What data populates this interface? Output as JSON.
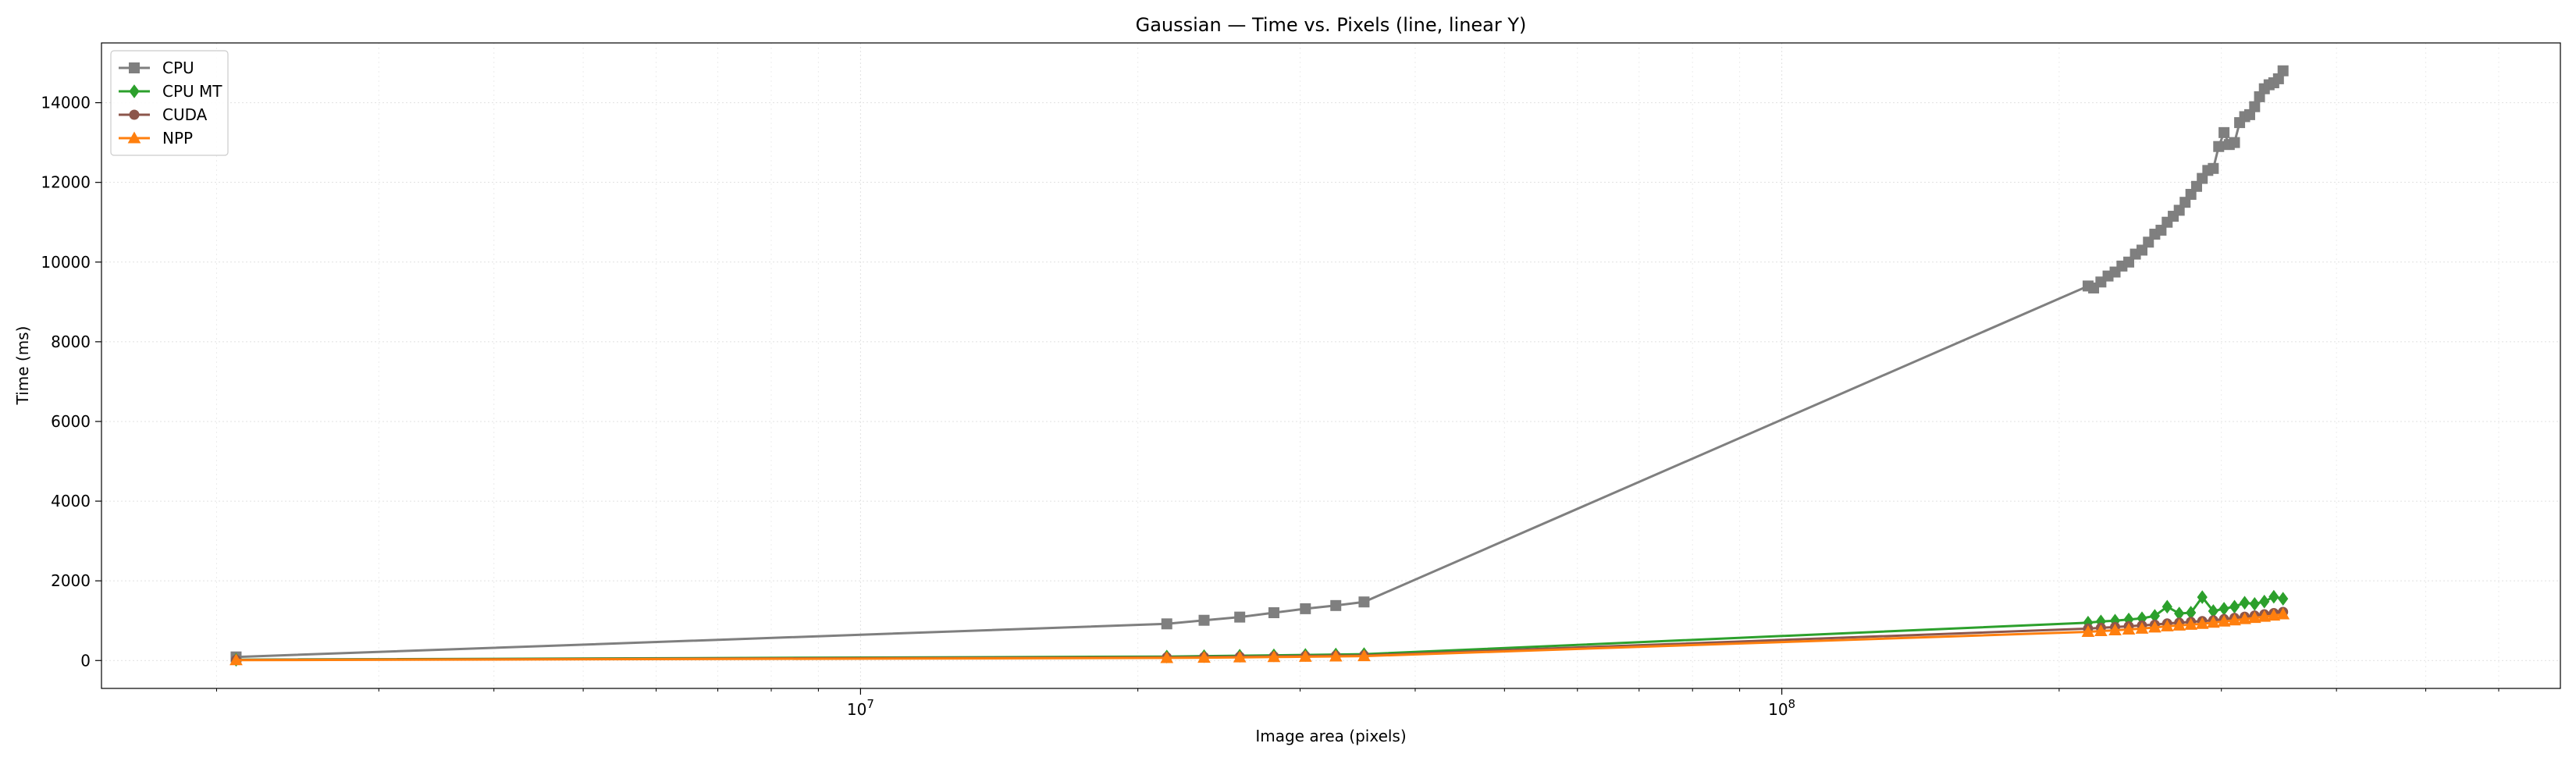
{
  "chart_data": {
    "type": "line",
    "title": "Gaussian — Time vs. Pixels (line, linear Y)",
    "xlabel": "Image area (pixels)",
    "ylabel": "Time (ms)",
    "xscale": "log",
    "xlim": [
      1500000,
      700000000
    ],
    "ylim": [
      -700,
      15500
    ],
    "xticks": [
      10000000,
      100000000
    ],
    "xtick_labels": [
      "10^7",
      "10^8"
    ],
    "yticks": [
      0,
      2000,
      4000,
      6000,
      8000,
      10000,
      12000,
      14000
    ],
    "ytick_labels": [
      "0",
      "2000",
      "4000",
      "6000",
      "8000",
      "10000",
      "12000",
      "14000"
    ],
    "grid": true,
    "legend_position": "top-left",
    "series": [
      {
        "name": "CPU",
        "color": "#7f7f7f",
        "marker": "square",
        "x": [
          2100000,
          21500000,
          23600000,
          25800000,
          28100000,
          30400000,
          32800000,
          35200000,
          215000000,
          218000000,
          222000000,
          226000000,
          230000000,
          234000000,
          238000000,
          242000000,
          246000000,
          250000000,
          254000000,
          258000000,
          262000000,
          266000000,
          270000000,
          274000000,
          278000000,
          282000000,
          286000000,
          290000000,
          294000000,
          298000000,
          302000000,
          306000000,
          310000000,
          314000000,
          318000000,
          322000000,
          326000000,
          330000000,
          334000000,
          338000000,
          342000000,
          346000000,
          350000000
        ],
        "y": [
          90,
          920,
          1010,
          1090,
          1200,
          1300,
          1380,
          1470,
          9400,
          9350,
          9500,
          9650,
          9750,
          9900,
          10000,
          10200,
          10300,
          10500,
          10700,
          10800,
          11000,
          11150,
          11300,
          11500,
          11700,
          11900,
          12100,
          12300,
          12350,
          12900,
          13250,
          12950,
          13000,
          13500,
          13650,
          13700,
          13900,
          14150,
          14350,
          14450,
          14500,
          14600,
          14800
        ]
      },
      {
        "name": "CPU MT",
        "color": "#2ca02c",
        "marker": "diamond",
        "x": [
          2100000,
          21500000,
          23600000,
          25800000,
          28100000,
          30400000,
          32800000,
          35200000,
          215000000,
          222000000,
          230000000,
          238000000,
          246000000,
          254000000,
          262000000,
          270000000,
          278000000,
          286000000,
          294000000,
          302000000,
          310000000,
          318000000,
          326000000,
          334000000,
          342000000,
          350000000
        ],
        "y": [
          20,
          100,
          110,
          120,
          130,
          140,
          150,
          160,
          950,
          980,
          1000,
          1030,
          1060,
          1120,
          1350,
          1180,
          1200,
          1590,
          1240,
          1300,
          1350,
          1450,
          1420,
          1480,
          1600,
          1550
        ]
      },
      {
        "name": "CUDA",
        "color": "#8c564b",
        "marker": "circle",
        "x": [
          2100000,
          21500000,
          23600000,
          25800000,
          28100000,
          30400000,
          32800000,
          35200000,
          215000000,
          222000000,
          230000000,
          238000000,
          246000000,
          254000000,
          262000000,
          270000000,
          278000000,
          286000000,
          294000000,
          302000000,
          310000000,
          318000000,
          326000000,
          334000000,
          342000000,
          350000000
        ],
        "y": [
          15,
          80,
          88,
          96,
          104,
          112,
          120,
          128,
          800,
          820,
          840,
          860,
          880,
          900,
          930,
          950,
          970,
          990,
          1010,
          1040,
          1070,
          1100,
          1130,
          1160,
          1190,
          1220
        ]
      },
      {
        "name": "NPP",
        "color": "#ff7f0e",
        "marker": "triangle",
        "x": [
          2100000,
          21500000,
          23600000,
          25800000,
          28100000,
          30400000,
          32800000,
          35200000,
          215000000,
          222000000,
          230000000,
          238000000,
          246000000,
          254000000,
          262000000,
          270000000,
          278000000,
          286000000,
          294000000,
          302000000,
          310000000,
          318000000,
          326000000,
          334000000,
          342000000,
          350000000
        ],
        "y": [
          10,
          65,
          72,
          80,
          88,
          95,
          103,
          110,
          720,
          740,
          760,
          780,
          800,
          830,
          860,
          880,
          900,
          920,
          950,
          980,
          1010,
          1040,
          1070,
          1100,
          1130,
          1160
        ]
      }
    ]
  }
}
